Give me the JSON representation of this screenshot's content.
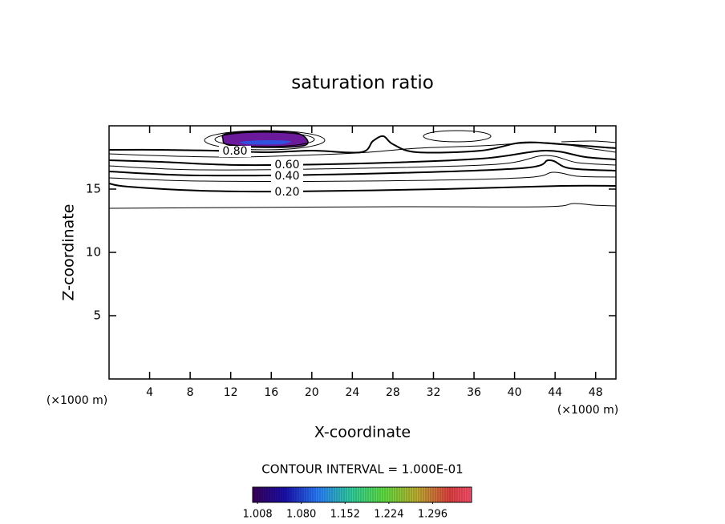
{
  "chart_data": {
    "type": "contour",
    "title": "saturation ratio",
    "x_label": "X-coordinate",
    "y_label": "Z-coordinate",
    "x_unit_label": "(×1000 m)",
    "y_unit_label": "(×1000 m)",
    "xlim": [
      0,
      50
    ],
    "xticks": [
      4,
      8,
      12,
      16,
      20,
      24,
      28,
      32,
      36,
      40,
      44,
      48
    ],
    "ylim": [
      0,
      20
    ],
    "yticks": [
      5,
      10,
      15
    ],
    "contour_interval_text": "CONTOUR INTERVAL = 1.000E-01",
    "contour_levels": [
      {
        "value": 0.1
      },
      {
        "value": 0.2,
        "label": "0.20"
      },
      {
        "value": 0.3
      },
      {
        "value": 0.4,
        "label": "0.40"
      },
      {
        "value": 0.5
      },
      {
        "value": 0.6,
        "label": "0.60"
      },
      {
        "value": 0.7
      },
      {
        "value": 0.8,
        "label": "0.80"
      },
      {
        "value": 0.9
      },
      {
        "value": 1.0
      }
    ],
    "clim": [
      1.0,
      1.36
    ],
    "colorbar_ticks": [
      1.008,
      {
        "value": 1.08,
        "label": "1.080"
      },
      1.152,
      1.224,
      1.296
    ]
  }
}
